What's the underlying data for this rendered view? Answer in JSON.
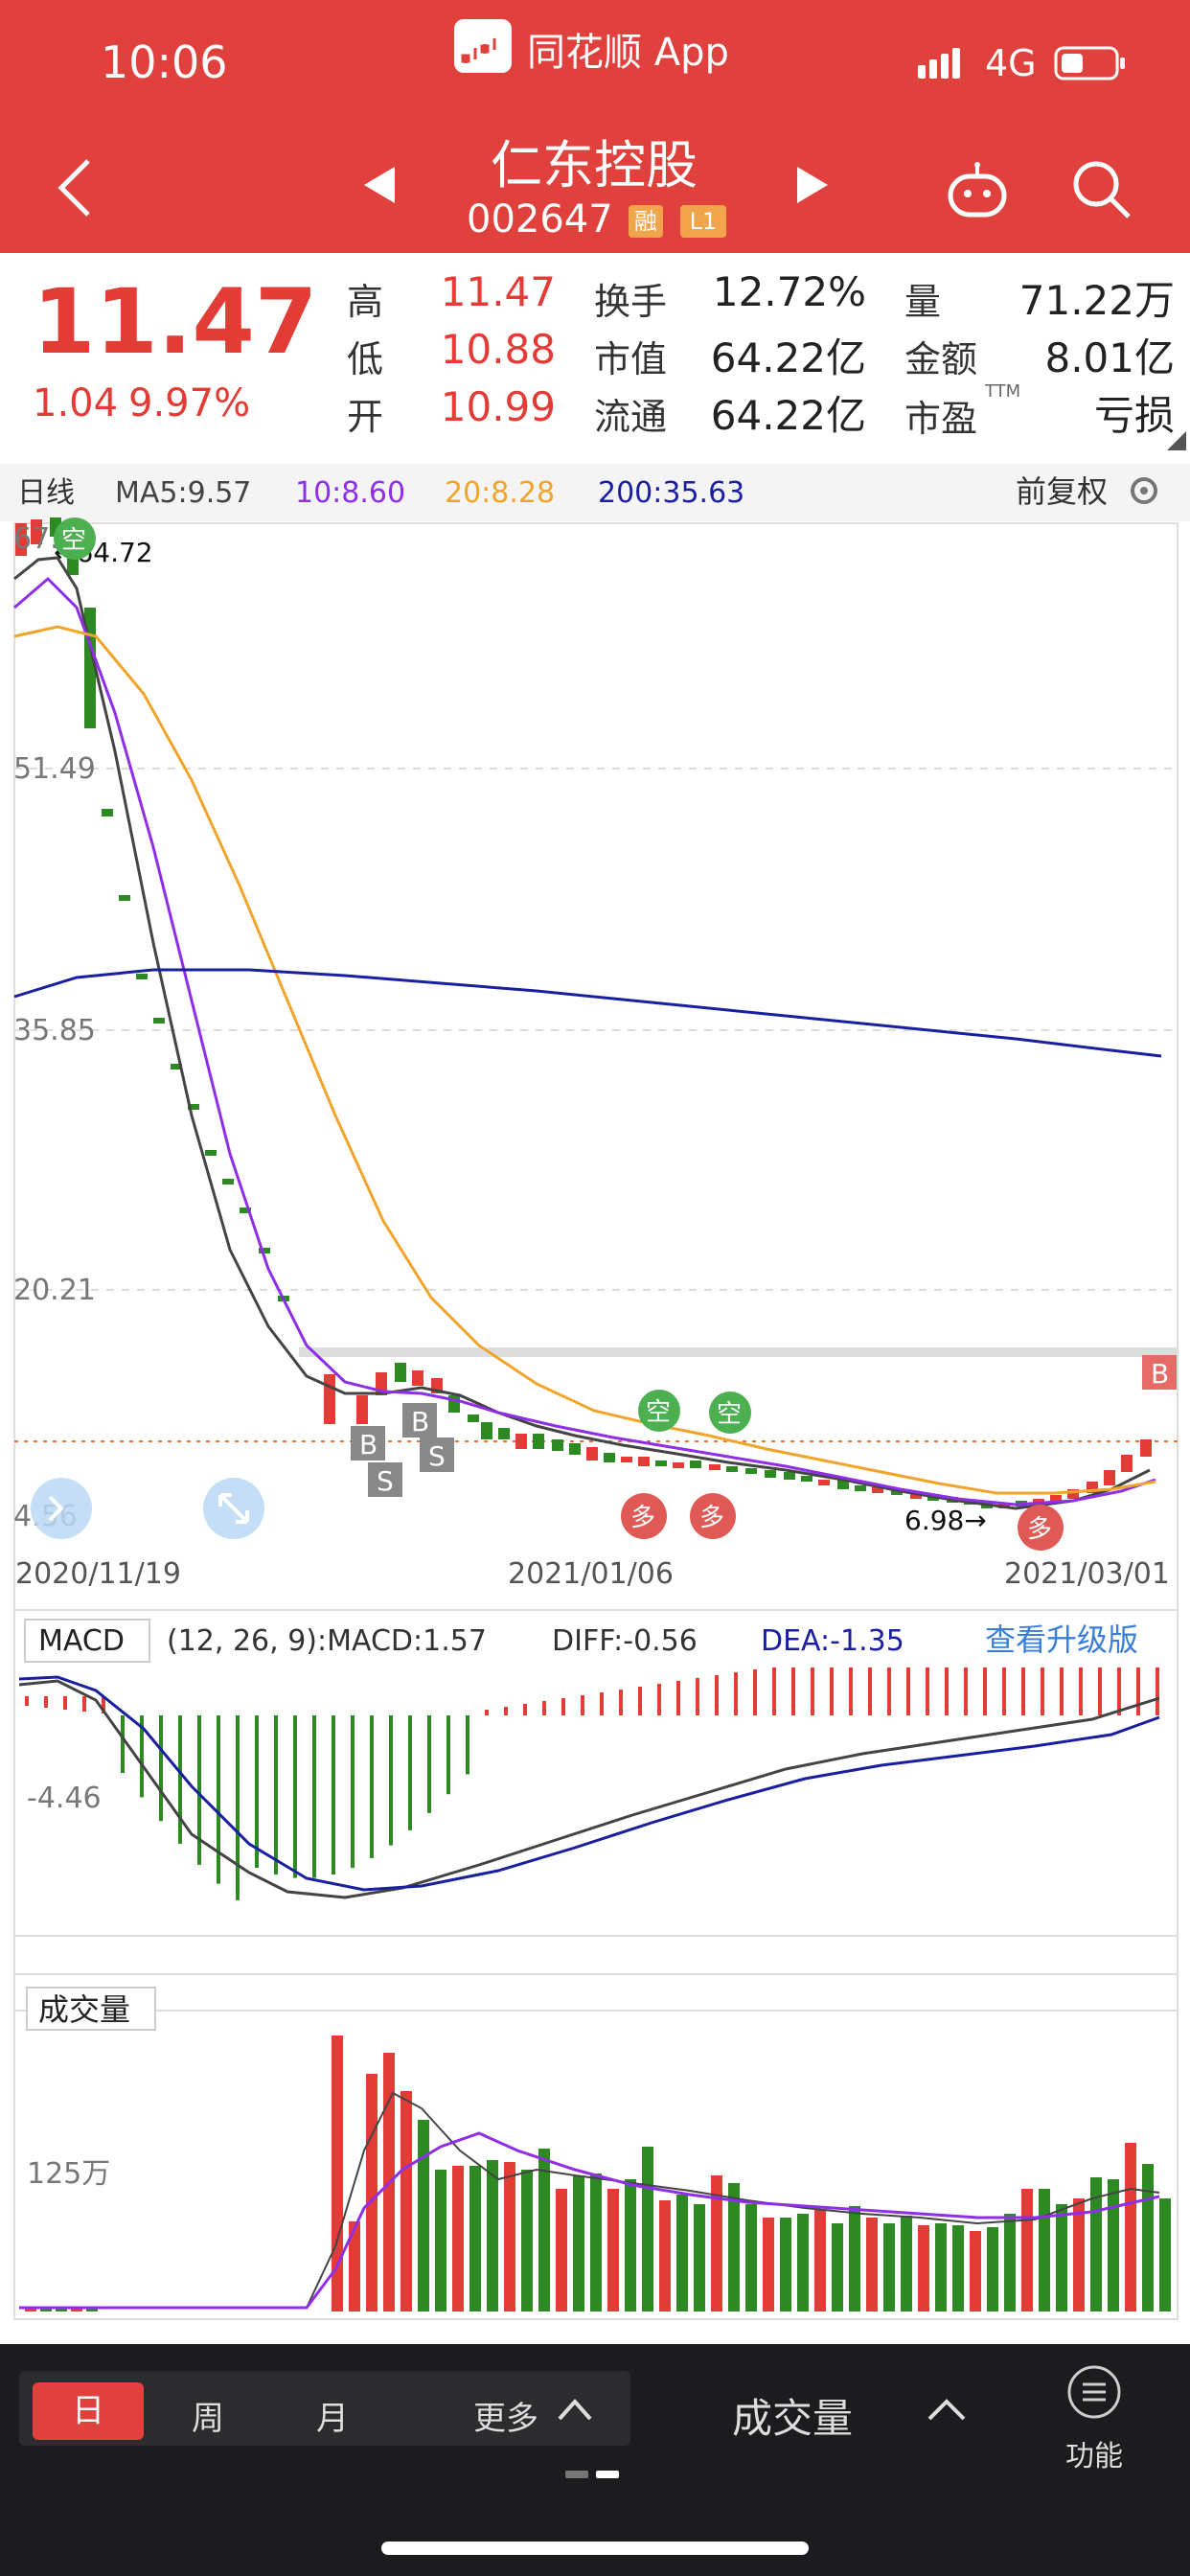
{
  "status": {
    "time": "10:06",
    "app_name": "同花顺 App",
    "network": "4G"
  },
  "nav": {
    "title": "仁东控股",
    "code": "002647",
    "tag_margin": "融",
    "tag_level": "L1"
  },
  "quote": {
    "price": "11.47",
    "change": "1.04",
    "change_pct": "9.97%",
    "cells": [
      {
        "label": "高",
        "value": "11.47"
      },
      {
        "label": "换手",
        "value": "12.72%"
      },
      {
        "label": "量",
        "value": "71.22万"
      },
      {
        "label": "低",
        "value": "10.88"
      },
      {
        "label": "市值",
        "value": "64.22亿"
      },
      {
        "label": "金额",
        "value": "8.01亿"
      },
      {
        "label": "开",
        "value": "10.99"
      },
      {
        "label": "流通",
        "value": "64.22亿"
      },
      {
        "label": "市盈",
        "value": "亏损"
      }
    ],
    "pe_suffix": "TTM"
  },
  "kline": {
    "period_label": "日线",
    "ma5": "MA5:9.57",
    "ma10": "10:8.60",
    "ma20": "20:8.28",
    "ma200": "200:35.63",
    "adjust_label": "前复权",
    "y_ticks": [
      "67.",
      "51.49",
      "35.85",
      "20.21",
      "4.56"
    ],
    "x_ticks": [
      "2020/11/19",
      "2021/01/06",
      "2021/03/01"
    ],
    "high_mark": "←64.72",
    "low_mark": "6.98→",
    "markers": {
      "b": "B",
      "s": "S",
      "empty": "空",
      "more": "多"
    }
  },
  "macd": {
    "name": "MACD",
    "params": "(12, 26, 9):MACD:1.57",
    "diff": "DIFF:-0.56",
    "dea": "DEA:-1.35",
    "upgrade": "查看升级版",
    "tick": "-4.46"
  },
  "volume": {
    "name": "成交量",
    "tick": "125万"
  },
  "chart_data": {
    "type": "candlestick",
    "title": "仁东控股 日线",
    "x_range": [
      "2020/11/19",
      "2021/03/01"
    ],
    "ylim": [
      4.56,
      67
    ],
    "price_high": 64.72,
    "price_low": 6.98,
    "last_close": 11.47,
    "moving_averages": {
      "MA5": 9.57,
      "MA10": 8.6,
      "MA20": 8.28,
      "MA200": 35.63
    },
    "macd": {
      "MACD": 1.57,
      "DIFF": -0.56,
      "DEA": -1.35
    }
  },
  "colors": {
    "up": "#e33b35",
    "down": "#2d8a22",
    "ma5": "#444444",
    "ma10": "#8e2ee8",
    "ma20": "#f0a52a",
    "ma200": "#1a1ea0",
    "accent": "#e0413c"
  },
  "bottom": {
    "tabs": [
      "日",
      "周",
      "月",
      "更多"
    ],
    "indicator": "成交量",
    "func_label": "功能"
  }
}
